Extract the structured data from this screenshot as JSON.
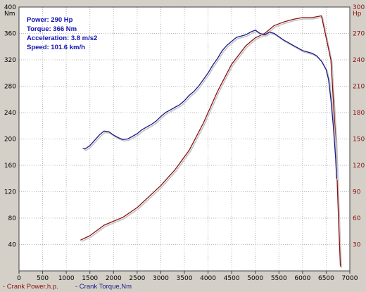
{
  "chart_data": {
    "type": "line",
    "x_axis": {
      "min": 0,
      "max": 7000,
      "ticks": [
        0,
        500,
        1000,
        1500,
        2000,
        2500,
        3000,
        3500,
        4000,
        4500,
        5000,
        5500,
        6000,
        6500,
        7000
      ]
    },
    "y_left": {
      "unit": "Nm",
      "min": 0,
      "max": 400,
      "ticks": [
        40,
        80,
        120,
        160,
        200,
        240,
        280,
        320,
        360,
        400
      ]
    },
    "y_right": {
      "unit": "Hp",
      "min": 0,
      "max": 300,
      "ticks": [
        30,
        60,
        90,
        120,
        150,
        180,
        210,
        240,
        270,
        300
      ]
    },
    "grid": true,
    "info_box": [
      "Power: 290 Hp",
      "Torque: 366 Nm",
      "Acceleration: 3.8 m/s2",
      "Speed: 101.6 km/h"
    ],
    "colors": {
      "power": "#8b1010",
      "torque": "#1a1a8c"
    },
    "series": [
      {
        "name": "Crank Power,h.p.",
        "axis": "right",
        "x": [
          1300,
          1500,
          1800,
          2200,
          2500,
          2800,
          3000,
          3300,
          3600,
          3900,
          4200,
          4500,
          4800,
          5000,
          5200,
          5400,
          5600,
          5800,
          6000,
          6200,
          6400,
          6600,
          6700,
          6760,
          6800
        ],
        "values": [
          35,
          40,
          52,
          61,
          72,
          87,
          97,
          115,
          137,
          168,
          204,
          235,
          256,
          265,
          270,
          279,
          283,
          286,
          288,
          288,
          290,
          240,
          150,
          60,
          5
        ]
      },
      {
        "name": "Crank Torque,Nm",
        "axis": "left",
        "x": [
          1350,
          1400,
          1500,
          1600,
          1700,
          1800,
          1900,
          2000,
          2100,
          2200,
          2300,
          2400,
          2500,
          2600,
          2700,
          2800,
          2900,
          3000,
          3100,
          3200,
          3300,
          3400,
          3500,
          3600,
          3700,
          3800,
          3900,
          4000,
          4100,
          4200,
          4300,
          4400,
          4500,
          4600,
          4700,
          4800,
          4900,
          5000,
          5100,
          5200,
          5300,
          5400,
          5500,
          5600,
          5700,
          5800,
          5900,
          6000,
          6100,
          6200,
          6300,
          6400,
          6500,
          6550,
          6600,
          6650,
          6700,
          6720
        ],
        "values": [
          186,
          185,
          190,
          198,
          206,
          212,
          211,
          206,
          202,
          199,
          200,
          204,
          208,
          214,
          218,
          222,
          227,
          234,
          240,
          244,
          248,
          252,
          258,
          266,
          272,
          280,
          290,
          300,
          312,
          322,
          334,
          342,
          348,
          354,
          356,
          358,
          362,
          365,
          360,
          358,
          362,
          360,
          355,
          350,
          346,
          342,
          338,
          334,
          332,
          330,
          326,
          318,
          305,
          290,
          260,
          220,
          170,
          140
        ]
      }
    ]
  }
}
